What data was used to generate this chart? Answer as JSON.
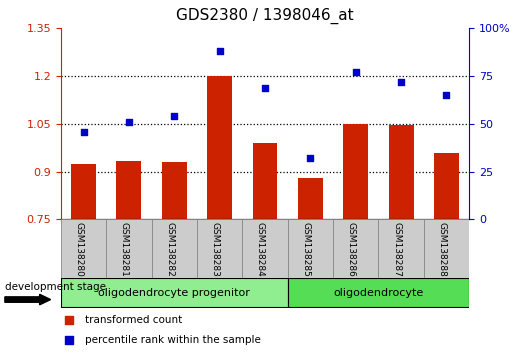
{
  "title": "GDS2380 / 1398046_at",
  "samples": [
    "GSM138280",
    "GSM138281",
    "GSM138282",
    "GSM138283",
    "GSM138284",
    "GSM138285",
    "GSM138286",
    "GSM138287",
    "GSM138288"
  ],
  "transformed_count": [
    0.925,
    0.935,
    0.93,
    1.2,
    0.99,
    0.88,
    1.05,
    1.045,
    0.96
  ],
  "percentile_rank": [
    46,
    51,
    54,
    88,
    69,
    32,
    77,
    72,
    65
  ],
  "ylim_left": [
    0.75,
    1.35
  ],
  "ylim_right": [
    0,
    100
  ],
  "yticks_left": [
    0.75,
    0.9,
    1.05,
    1.2,
    1.35
  ],
  "ytick_labels_left": [
    "0.75",
    "0.9",
    "1.05",
    "1.2",
    "1.35"
  ],
  "yticks_right": [
    0,
    25,
    50,
    75,
    100
  ],
  "ytick_labels_right": [
    "0",
    "25",
    "50",
    "75",
    "100%"
  ],
  "bar_color": "#cc2200",
  "dot_color": "#0000cc",
  "grid_color": "#000000",
  "dotted_lines": [
    0.9,
    1.05,
    1.2
  ],
  "groups": [
    {
      "label": "oligodendrocyte progenitor",
      "start": 0,
      "end": 5,
      "color": "#90ee90"
    },
    {
      "label": "oligodendrocyte",
      "start": 5,
      "end": 9,
      "color": "#55dd55"
    }
  ],
  "xlabel": "development stage",
  "legend_items": [
    {
      "label": "transformed count",
      "color": "#cc2200",
      "marker": "s"
    },
    {
      "label": "percentile rank within the sample",
      "color": "#0000cc",
      "marker": "s"
    }
  ],
  "bg_color": "#ffffff",
  "plot_bg_color": "#ffffff",
  "title_fontsize": 11,
  "axis_label_color_left": "#cc2200",
  "axis_label_color_right": "#0000cc",
  "tick_bg_color": "#cccccc",
  "tick_border_color": "#888888"
}
